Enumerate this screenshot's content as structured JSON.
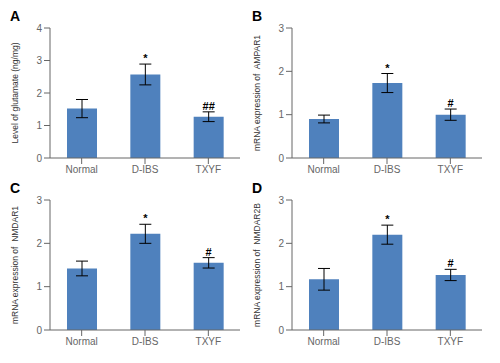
{
  "chart_data": [
    {
      "type": "bar",
      "title": "A",
      "ylabel": "Level of glutamate (ng/mg)",
      "categories": [
        "Normal",
        "D-IBS",
        "TXYF"
      ],
      "values": [
        1.52,
        2.57,
        1.27
      ],
      "errors": [
        0.28,
        0.32,
        0.15
      ],
      "annotations": [
        null,
        "*",
        "##"
      ],
      "color": "#4F81BD",
      "ylim": [
        0,
        4
      ],
      "yticks": [
        0,
        1,
        2,
        3,
        4
      ]
    },
    {
      "type": "bar",
      "title": "B",
      "ylabel": "mRNA expression of  AMPAR1",
      "categories": [
        "Normal",
        "D-IBS",
        "TXYF"
      ],
      "values": [
        0.9,
        1.73,
        1.0
      ],
      "errors": [
        0.09,
        0.22,
        0.13
      ],
      "annotations": [
        null,
        "*",
        "#"
      ],
      "color": "#4F81BD",
      "ylim": [
        0,
        3
      ],
      "yticks": [
        0,
        1,
        2,
        3
      ]
    },
    {
      "type": "bar",
      "title": "C",
      "ylabel": "mRNA expression of  NMDAR1",
      "categories": [
        "Normal",
        "D-IBS",
        "TXYF"
      ],
      "values": [
        1.42,
        2.22,
        1.55
      ],
      "errors": [
        0.17,
        0.22,
        0.12
      ],
      "annotations": [
        null,
        "*",
        "#"
      ],
      "color": "#4F81BD",
      "ylim": [
        0,
        3
      ],
      "yticks": [
        0,
        1,
        2,
        3
      ]
    },
    {
      "type": "bar",
      "title": "D",
      "ylabel": "mRNA expression of  NMDAR2B",
      "categories": [
        "Normal",
        "D-IBS",
        "TXYF"
      ],
      "values": [
        1.17,
        2.2,
        1.27
      ],
      "errors": [
        0.25,
        0.22,
        0.13
      ],
      "annotations": [
        null,
        "*",
        "#"
      ],
      "color": "#4F81BD",
      "ylim": [
        0,
        3
      ],
      "yticks": [
        0,
        1,
        2,
        3
      ]
    }
  ]
}
